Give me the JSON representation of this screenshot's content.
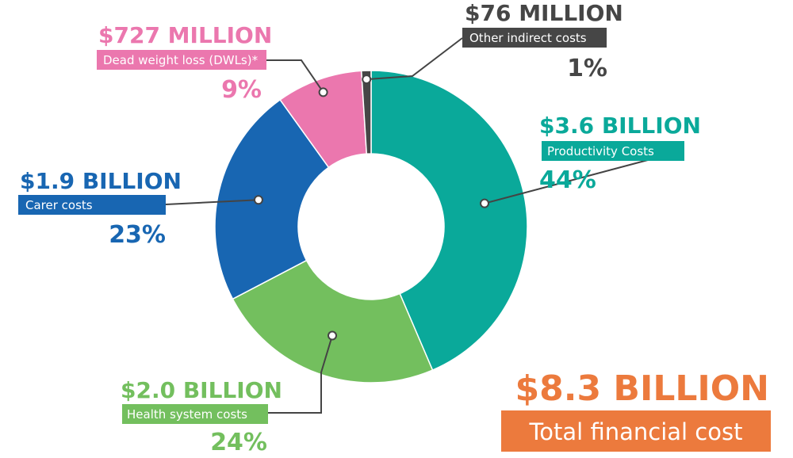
{
  "chart_data": {
    "type": "pie",
    "style": "donut",
    "slices": [
      {
        "label": "Productivity Costs",
        "value_text": "$3.6 BILLION",
        "percent_text": "44%",
        "percent": 44,
        "value": 3.6,
        "color": "#0aa99a"
      },
      {
        "label": "Health system costs",
        "value_text": "$2.0 BILLION",
        "percent_text": "24%",
        "percent": 24,
        "value": 2.0,
        "color": "#73bf5e"
      },
      {
        "label": "Carer costs",
        "value_text": "$1.9 BILLION",
        "percent_text": "23%",
        "percent": 23,
        "value": 1.9,
        "color": "#1866b2"
      },
      {
        "label": "Dead weight loss (DWLs)*",
        "value_text": "$727 MILLION",
        "percent_text": "9%",
        "percent": 9,
        "value": 0.727,
        "color": "#eb77ae"
      },
      {
        "label": "Other indirect costs",
        "value_text": "$76 MILLION",
        "percent_text": "1%",
        "percent": 1,
        "value": 0.076,
        "color": "#464646"
      }
    ],
    "total": {
      "value_text": "$8.3 BILLION",
      "label": "Total financial cost",
      "value_color": "#ec7a3d",
      "label_bg": "#ec7a3d"
    }
  }
}
